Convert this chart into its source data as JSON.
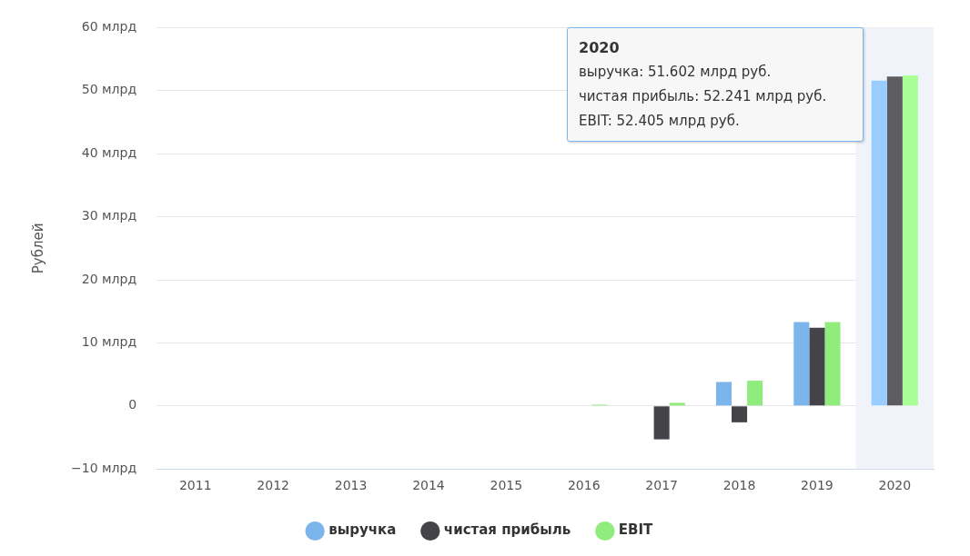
{
  "chart_data": {
    "type": "bar",
    "ylabel": "Рублей",
    "categories": [
      "2011",
      "2012",
      "2013",
      "2014",
      "2015",
      "2016",
      "2017",
      "2018",
      "2019",
      "2020"
    ],
    "series": [
      {
        "name": "выручка",
        "color": "#7cb5ec",
        "colors": [
          "#7cb5ec",
          "#7cb5ec",
          "#7cb5ec",
          "#7cb5ec",
          "#7cb5ec",
          "#7cb5ec",
          "#7cb5ec",
          "#7cb5ec",
          "#7cb5ec",
          "#99ccff"
        ],
        "values": [
          null,
          null,
          null,
          null,
          null,
          null,
          null,
          3.8,
          13.3,
          51.602
        ]
      },
      {
        "name": "чистая прибыль",
        "color": "#434348",
        "colors": [
          "#434348",
          "#434348",
          "#434348",
          "#434348",
          "#434348",
          "#434348",
          "#434348",
          "#434348",
          "#434348",
          "#5c5c61"
        ],
        "values": [
          null,
          null,
          null,
          null,
          null,
          null,
          -5.3,
          -2.6,
          12.4,
          52.241
        ]
      },
      {
        "name": "EBIT",
        "color": "#90ed7d",
        "colors": [
          "#90ed7d",
          "#90ed7d",
          "#90ed7d",
          "#90ed7d",
          "#90ed7d",
          "#90ed7d",
          "#90ed7d",
          "#90ed7d",
          "#90ed7d",
          "#a9ff96"
        ],
        "values": [
          null,
          null,
          null,
          null,
          null,
          0.2,
          0.5,
          4.0,
          13.3,
          52.405
        ]
      }
    ],
    "ylim": [
      -10,
      60
    ],
    "yticks": [
      {
        "value": -10,
        "label": "−10 млрд"
      },
      {
        "value": 0,
        "label": "0"
      },
      {
        "value": 10,
        "label": "10 млрд"
      },
      {
        "value": 20,
        "label": "20 млрд"
      },
      {
        "value": 30,
        "label": "30 млрд"
      },
      {
        "value": 40,
        "label": "40 млрд"
      },
      {
        "value": 50,
        "label": "50 млрд"
      },
      {
        "value": 60,
        "label": "60 млрд"
      }
    ],
    "grid": "y",
    "legend": "bottom",
    "bands": [
      {
        "axis": "x",
        "from": "2020",
        "to": "2020",
        "color": "#f0f3f9"
      }
    ],
    "annotations": [
      "2020",
      "выручка: 51.602 млрд руб.",
      "чистая прибыль: 52.241 млрд руб.",
      "EBIT: 52.405 млрд руб."
    ]
  }
}
